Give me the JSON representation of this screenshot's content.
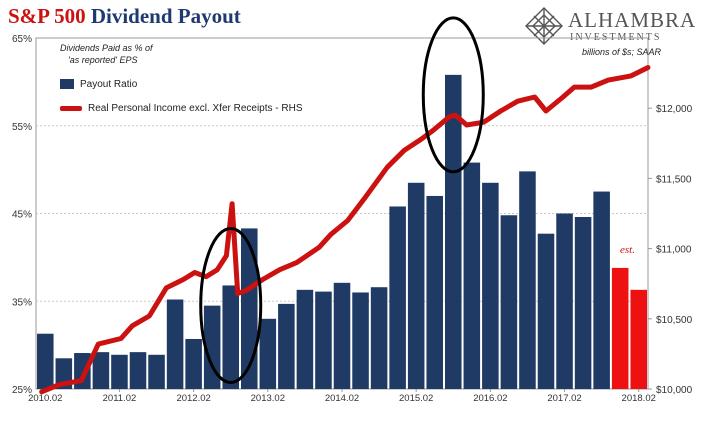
{
  "title": {
    "part1": "S&P 500",
    "part2": "Dividend Payout"
  },
  "logo": {
    "name": "ALHAMBRA",
    "sub": "INVESTMENTS",
    "icon": "alhambra-tile-icon"
  },
  "left_axis_note": [
    "Dividends Paid as % of",
    "'as reported' EPS"
  ],
  "right_axis_note": "billions of $s; SAAR",
  "est_label": "est.",
  "chart_data": {
    "type": "bar+line",
    "categories": [
      "2010.02",
      "2010.03",
      "2010.04",
      "2011.01",
      "2011.02",
      "2011.03",
      "2011.04",
      "2012.01",
      "2012.02",
      "2012.03",
      "2012.04",
      "2013.01",
      "2013.02",
      "2013.03",
      "2013.04",
      "2014.01",
      "2014.02",
      "2014.03",
      "2014.04",
      "2015.01",
      "2015.02",
      "2015.03",
      "2015.04",
      "2016.01",
      "2016.02",
      "2016.03",
      "2016.04",
      "2017.01",
      "2017.02",
      "2017.03",
      "2017.04",
      "2018.01",
      "2018.02"
    ],
    "x_tick_labels": [
      "2010.02",
      "2011.02",
      "2012.02",
      "2013.02",
      "2014.02",
      "2015.02",
      "2016.02",
      "2017.02",
      "2018.02"
    ],
    "series": [
      {
        "name": "Payout Ratio",
        "axis": "left",
        "kind": "bar",
        "color": "#1f3a64",
        "values": [
          31.3,
          28.5,
          29.1,
          29.2,
          28.9,
          29.2,
          28.9,
          35.2,
          30.7,
          34.5,
          36.8,
          43.3,
          33.0,
          34.7,
          36.3,
          36.1,
          37.1,
          36.0,
          36.6,
          45.8,
          48.5,
          47.0,
          60.8,
          50.8,
          48.5,
          44.8,
          49.8,
          42.7,
          45.0,
          44.6,
          47.5,
          38.8,
          36.3
        ],
        "estimated_from_index": 31,
        "estimated_color": "#ee1111"
      },
      {
        "name": "Real Personal Income excl. Xfer Receipts - RHS",
        "axis": "right",
        "kind": "line",
        "color": "#cc1111",
        "points": [
          [
            0.5,
            9980
          ],
          [
            2,
            10030
          ],
          [
            4,
            10060
          ],
          [
            5.5,
            10320
          ],
          [
            7.5,
            10360
          ],
          [
            8.5,
            10450
          ],
          [
            10,
            10520
          ],
          [
            11.5,
            10720
          ],
          [
            13,
            10780
          ],
          [
            14,
            10830
          ],
          [
            15,
            10800
          ],
          [
            16,
            10850
          ],
          [
            16.8,
            10950
          ],
          [
            17.3,
            11320
          ],
          [
            17.8,
            10680
          ],
          [
            18.5,
            10700
          ],
          [
            20,
            10780
          ],
          [
            21.5,
            10850
          ],
          [
            23,
            10900
          ],
          [
            25,
            11010
          ],
          [
            26,
            11100
          ],
          [
            27.5,
            11200
          ],
          [
            29,
            11360
          ],
          [
            31,
            11580
          ],
          [
            32.5,
            11700
          ],
          [
            34,
            11780
          ],
          [
            35,
            11840
          ],
          [
            36.5,
            11940
          ],
          [
            37,
            11950
          ],
          [
            38,
            11880
          ],
          [
            39.5,
            11900
          ],
          [
            41,
            11980
          ],
          [
            42.5,
            12050
          ],
          [
            44,
            12080
          ],
          [
            45,
            11980
          ],
          [
            46.5,
            12080
          ],
          [
            47.5,
            12150
          ],
          [
            49,
            12150
          ],
          [
            50.5,
            12200
          ],
          [
            52.5,
            12230
          ],
          [
            54,
            12290
          ]
        ],
        "x_domain": [
          0,
          54
        ]
      }
    ],
    "y_left": {
      "ylim": [
        25,
        65
      ],
      "ticks": [
        "25%",
        "35%",
        "45%",
        "55%",
        "65%"
      ]
    },
    "y_right": {
      "ylim": [
        10000,
        12500
      ],
      "ticks": [
        "$10,000",
        "$10,500",
        "$11,000",
        "$11,500",
        "$12,000"
      ]
    },
    "annotations": [
      {
        "kind": "ellipse",
        "around": "2012.04"
      },
      {
        "kind": "ellipse",
        "around": "2015.04"
      }
    ],
    "legend_position": "top-left"
  }
}
